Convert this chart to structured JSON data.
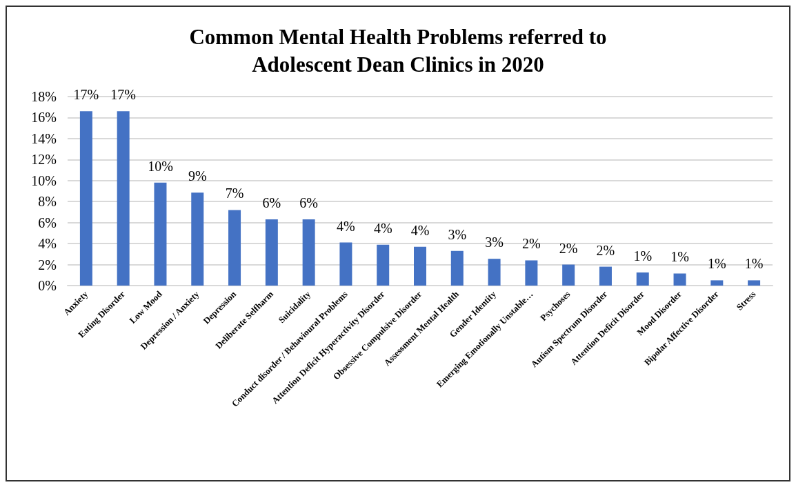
{
  "chart_data": {
    "type": "bar",
    "title": "Common Mental Health Problems referred to\nAdolescent Dean Clinics in 2020",
    "categories": [
      "Anxiety",
      "Eating Disorder",
      "Low Mood",
      "Depression / Anxiety",
      "Depression",
      "Deliberate Selfharm",
      "Suicidality",
      "Conduct disorder / Behavioural Problems",
      "Attention Deficit Hyperactivity Disorder",
      "Obsessive Compulsive Disorder",
      "Assessment Mental Health",
      "Gender Identity",
      "Emerging Emotionally Unstable…",
      "Psychoses",
      "Autism Spectrum Disorder",
      "Attention Deficit Disorder",
      "Mood Disorder",
      "Bipolar Affective Disorder",
      "Stress"
    ],
    "values": [
      16.6,
      16.6,
      9.8,
      8.85,
      7.2,
      6.3,
      6.3,
      4.1,
      3.9,
      3.7,
      3.3,
      2.55,
      2.4,
      2.0,
      1.8,
      1.25,
      1.15,
      0.5,
      0.5
    ],
    "value_labels": [
      "17%",
      "17%",
      "10%",
      "9%",
      "7%",
      "6%",
      "6%",
      "4%",
      "4%",
      "4%",
      "3%",
      "3%",
      "2%",
      "2%",
      "2%",
      "1%",
      "1%",
      "1%",
      "1%"
    ],
    "color": "#4472c4",
    "ylim": [
      0,
      18
    ],
    "yticks": [
      {
        "value": 0,
        "label": "0%"
      },
      {
        "value": 2,
        "label": "2%"
      },
      {
        "value": 4,
        "label": "4%"
      },
      {
        "value": 6,
        "label": "6%"
      },
      {
        "value": 8,
        "label": "8%"
      },
      {
        "value": 10,
        "label": "10%"
      },
      {
        "value": 12,
        "label": "12%"
      },
      {
        "value": 14,
        "label": "14%"
      },
      {
        "value": 16,
        "label": "16%"
      },
      {
        "value": 18,
        "label": "18%"
      }
    ],
    "grid": "y"
  }
}
